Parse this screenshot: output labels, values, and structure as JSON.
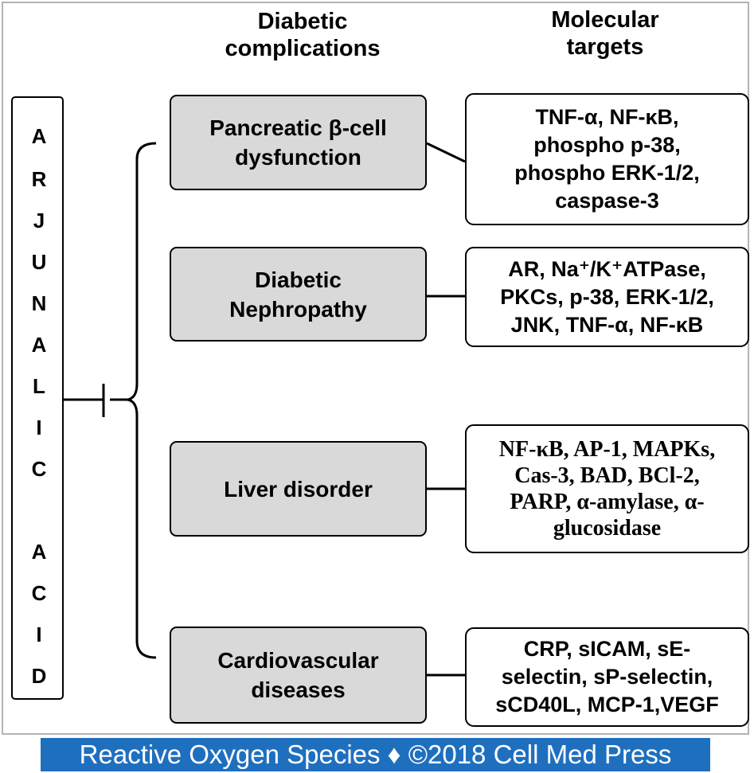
{
  "headers": {
    "complications": [
      "Diabetic",
      "complications"
    ],
    "targets": [
      "Molecular",
      "targets"
    ]
  },
  "compound_letters": [
    "A",
    "R",
    "J",
    "U",
    "N",
    "A",
    "L",
    "I",
    "C",
    "",
    "A",
    "C",
    "I",
    "D"
  ],
  "complications": [
    {
      "lines": [
        "Pancreatic β-cell",
        "dysfunction"
      ]
    },
    {
      "lines": [
        "Diabetic",
        "Nephropathy"
      ]
    },
    {
      "lines": [
        "Liver disorder"
      ]
    },
    {
      "lines": [
        "Cardiovascular",
        "diseases"
      ]
    }
  ],
  "targets": [
    {
      "lines": [
        "TNF-α, NF-κB,",
        "phospho p-38,",
        "phospho ERK-1/2,",
        "caspase-3"
      ]
    },
    {
      "lines": [
        "AR, Na⁺/K⁺ATPase,",
        "PKCs, p-38, ERK-1/2,",
        "JNK, TNF-α, NF-κB"
      ]
    },
    {
      "lines": [
        "NF-κB, AP-1,  MAPKs,",
        "Cas-3, BAD, BCl-2,",
        "PARP, α-amylase,  α-",
        "glucosidase"
      ]
    },
    {
      "lines": [
        "CRP, sICAM, sE-",
        "selectin, sP-selectin,",
        "sCD40L, MCP-1,VEGF"
      ]
    }
  ],
  "footer": "Reactive Oxygen Species ♦ ©2018 Cell Med Press",
  "colors": {
    "complication_fill": "#d9d9d9",
    "footer_bg": "#1f6fbf",
    "frame_border": "#b3b3b3"
  }
}
